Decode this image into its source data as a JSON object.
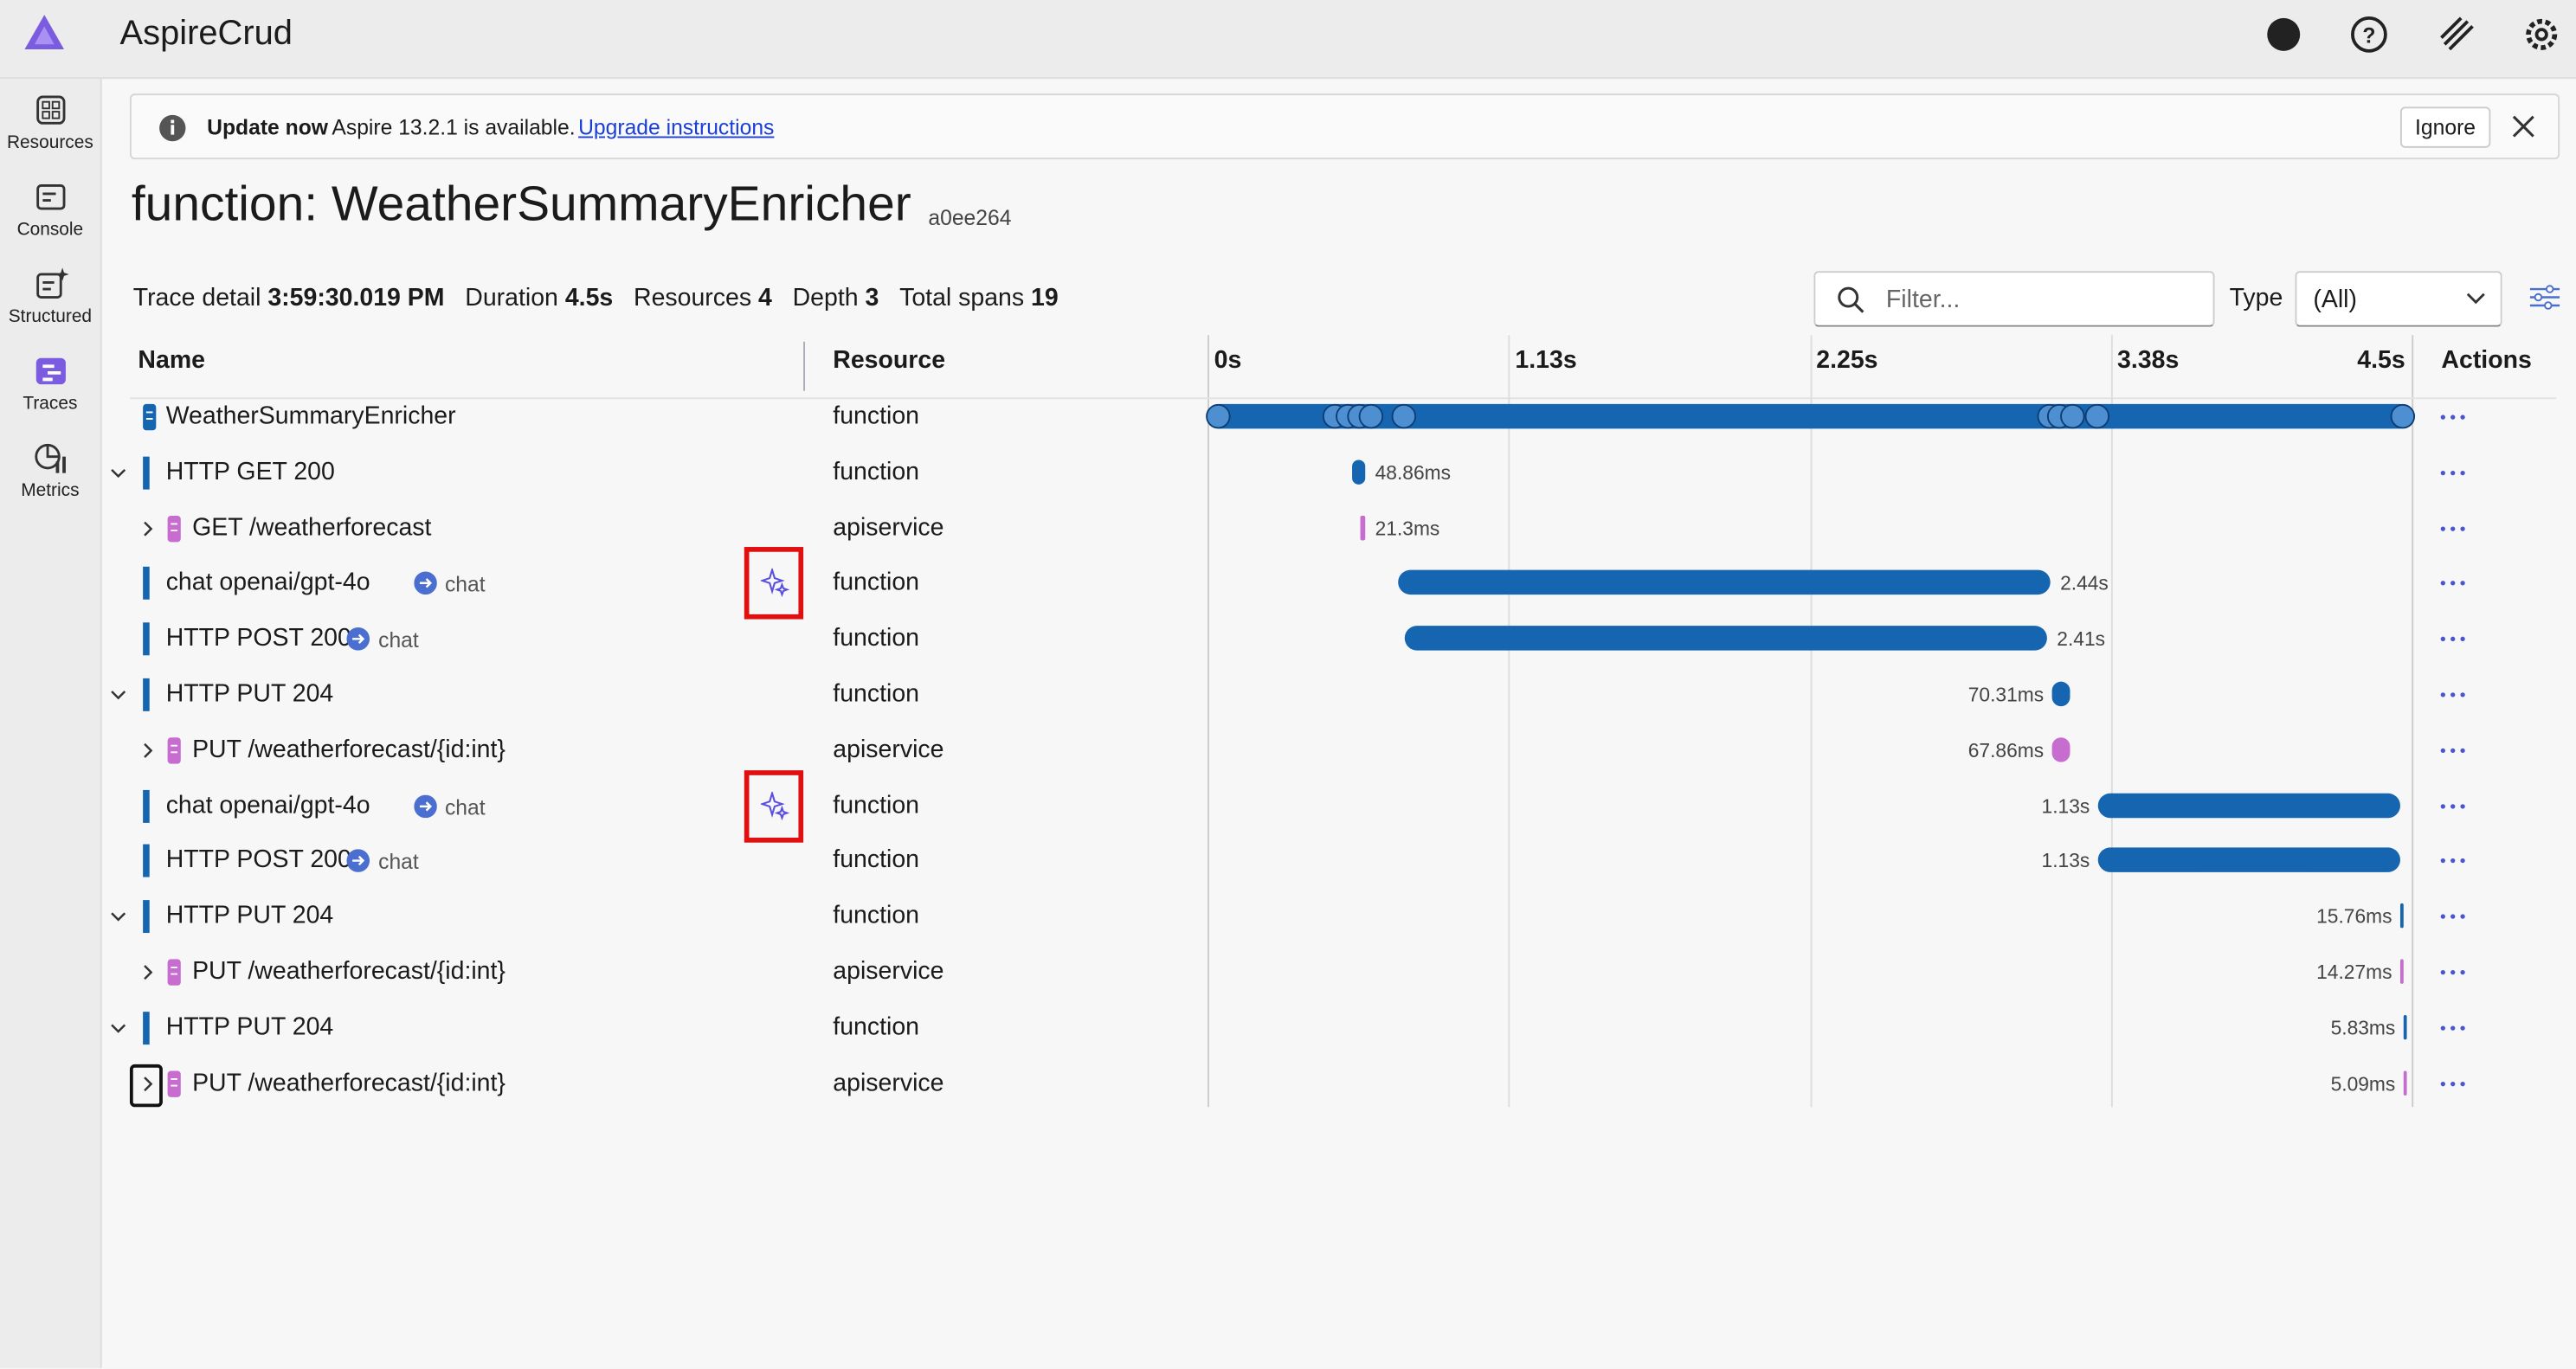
{
  "app": {
    "title": "AspireCrud"
  },
  "nav": [
    "Resources",
    "Console",
    "Structured",
    "Traces",
    "Metrics"
  ],
  "banner": {
    "title": "Update now",
    "message": "Aspire 13.2.1 is available.",
    "link": "Upgrade instructions",
    "button": "Ignore"
  },
  "page": {
    "title": "function: WeatherSummaryEnricher",
    "trace_id": "a0ee264"
  },
  "summary": [
    {
      "label": "Trace detail",
      "value": "3:59:30.019 PM"
    },
    {
      "label": "Duration",
      "value": "4.5s"
    },
    {
      "label": "Resources",
      "value": "4"
    },
    {
      "label": "Depth",
      "value": "3"
    },
    {
      "label": "Total spans",
      "value": "19"
    }
  ],
  "filter": {
    "placeholder": "Filter...",
    "type_label": "Type",
    "type_value": "(All)"
  },
  "table": {
    "columns": [
      "Name",
      "Resource",
      "Actions"
    ],
    "timeline_ticks": [
      "0s",
      "1.13s",
      "2.25s",
      "3.38s",
      "4.5s"
    ],
    "rows": [
      {
        "name": "WeatherSummaryEnricher",
        "resource": "function"
      },
      {
        "name": "HTTP GET 200",
        "resource": "function",
        "duration": "48.86ms"
      },
      {
        "name": "GET /weatherforecast",
        "resource": "apiservice",
        "duration": "21.3ms"
      },
      {
        "name": "chat openai/gpt-4o",
        "tag": "chat",
        "resource": "function",
        "duration": "2.44s"
      },
      {
        "name": "HTTP POST 200",
        "tag": "chat",
        "resource": "function",
        "duration": "2.41s"
      },
      {
        "name": "HTTP PUT 204",
        "resource": "function",
        "duration": "70.31ms"
      },
      {
        "name": "PUT /weatherforecast/{id:int}",
        "resource": "apiservice",
        "duration": "67.86ms"
      },
      {
        "name": "chat openai/gpt-4o",
        "tag": "chat",
        "resource": "function",
        "duration": "1.13s"
      },
      {
        "name": "HTTP POST 200",
        "tag": "chat",
        "resource": "function",
        "duration": "1.13s"
      },
      {
        "name": "HTTP PUT 204",
        "resource": "function",
        "duration": "15.76ms"
      },
      {
        "name": "PUT /weatherforecast/{id:int}",
        "resource": "apiservice",
        "duration": "14.27ms"
      },
      {
        "name": "HTTP PUT 204",
        "resource": "function",
        "duration": "5.83ms"
      },
      {
        "name": "PUT /weatherforecast/{id:int}",
        "resource": "apiservice",
        "duration": "5.09ms"
      }
    ]
  }
}
